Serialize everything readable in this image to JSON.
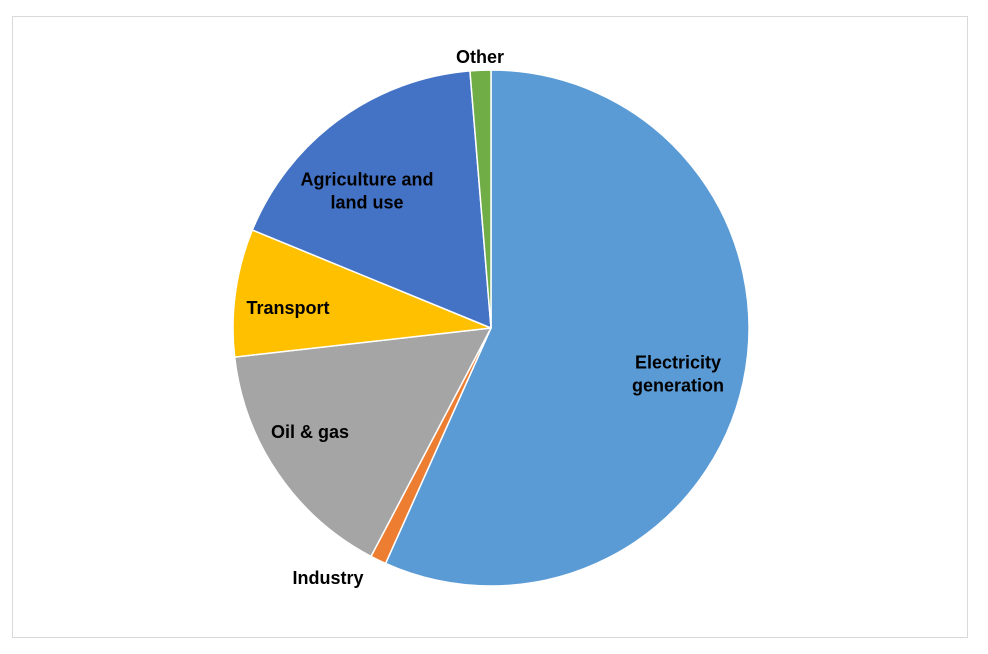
{
  "chart_data": {
    "type": "pie",
    "title": "",
    "slices": [
      {
        "label": "Electricity generation",
        "label_lines": [
          "Electricity",
          "generation"
        ],
        "value": 56.7,
        "color": "#5b9bd5"
      },
      {
        "label": "Industry",
        "label_lines": [
          "Industry"
        ],
        "value": 1.0,
        "color": "#ed7d31"
      },
      {
        "label": "Oil & gas",
        "label_lines": [
          "Oil & gas"
        ],
        "value": 15.5,
        "color": "#a5a5a5"
      },
      {
        "label": "Transport",
        "label_lines": [
          "Transport"
        ],
        "value": 8.0,
        "color": "#ffc000"
      },
      {
        "label": "Agriculture and land use",
        "label_lines": [
          "Agriculture and",
          "land use"
        ],
        "value": 17.5,
        "color": "#4472c4"
      },
      {
        "label": "Other",
        "label_lines": [
          "Other"
        ],
        "value": 1.3,
        "color": "#70ad47"
      }
    ],
    "start_angle_deg": 0,
    "direction": "clockwise",
    "legend": "none",
    "labels": "category names on or beside slices"
  }
}
